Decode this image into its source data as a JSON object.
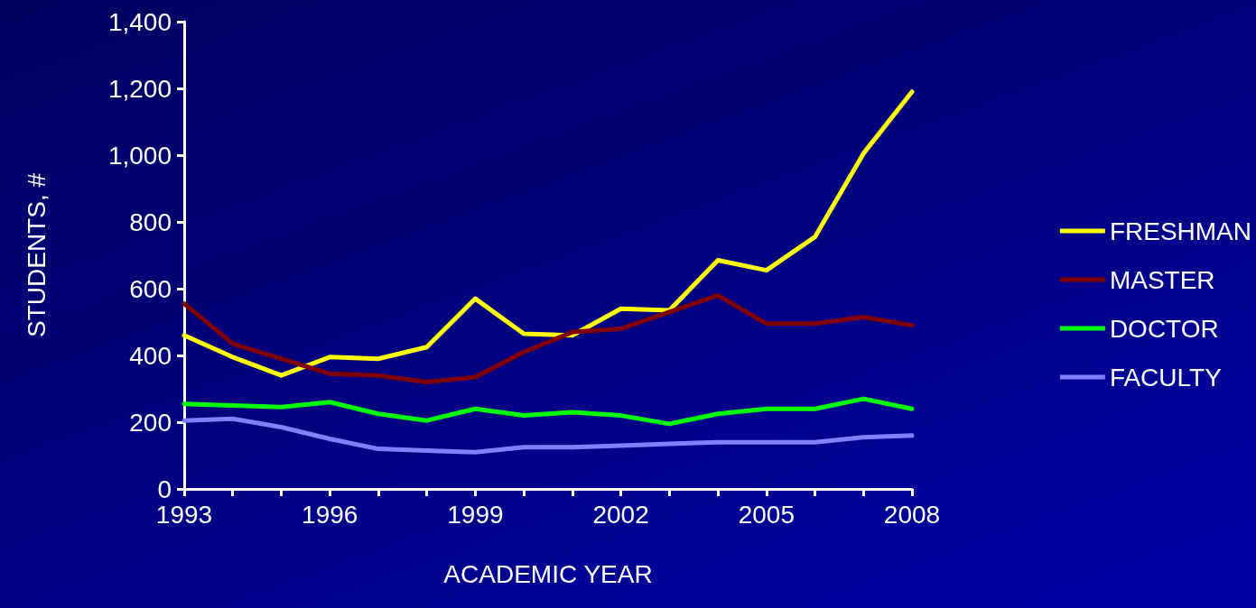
{
  "chart_data": {
    "type": "line",
    "xlabel": "ACADEMIC YEAR",
    "ylabel": "STUDENTS, #",
    "x": [
      1993,
      1994,
      1995,
      1996,
      1997,
      1998,
      1999,
      2000,
      2001,
      2002,
      2003,
      2004,
      2005,
      2006,
      2007,
      2008
    ],
    "series": [
      {
        "name": "FRESHMAN",
        "color": "#ffff00",
        "values": [
          460,
          395,
          340,
          395,
          390,
          425,
          570,
          465,
          460,
          540,
          535,
          685,
          655,
          755,
          1005,
          1190
        ]
      },
      {
        "name": "MASTER",
        "color": "#800000",
        "values": [
          555,
          435,
          390,
          345,
          340,
          320,
          335,
          410,
          470,
          480,
          530,
          580,
          495,
          495,
          515,
          490
        ]
      },
      {
        "name": "DOCTOR",
        "color": "#00ff00",
        "values": [
          255,
          250,
          245,
          260,
          225,
          205,
          240,
          220,
          230,
          220,
          195,
          225,
          240,
          240,
          270,
          240
        ]
      },
      {
        "name": "FACULTY",
        "color": "#8080ff",
        "values": [
          205,
          210,
          185,
          150,
          120,
          115,
          110,
          125,
          125,
          130,
          135,
          140,
          140,
          140,
          155,
          160
        ]
      }
    ],
    "xlim": [
      1993,
      2008
    ],
    "xticks": [
      1993,
      {
        "value": 1994,
        "label": null
      },
      {
        "value": 1995,
        "label": null
      },
      1996,
      {
        "value": 1997,
        "label": null
      },
      {
        "value": 1998,
        "label": null
      },
      1999,
      {
        "value": 2000,
        "label": null
      },
      {
        "value": 2001,
        "label": null
      },
      2002,
      {
        "value": 2003,
        "label": null
      },
      {
        "value": 2004,
        "label": null
      },
      2005,
      {
        "value": 2006,
        "label": null
      },
      {
        "value": 2007,
        "label": null
      },
      2008
    ],
    "ylim": [
      0,
      1400
    ],
    "yticks": [
      0,
      200,
      400,
      {
        "value": 600,
        "label": "600"
      },
      {
        "value": 800,
        "label": "800"
      },
      {
        "value": 1000,
        "label": "1,000"
      },
      {
        "value": 1200,
        "label": "1,200"
      },
      {
        "value": 1400,
        "label": "1,400"
      }
    ],
    "grid": false,
    "legend": "right",
    "marker": "none",
    "line_style": "solid"
  }
}
